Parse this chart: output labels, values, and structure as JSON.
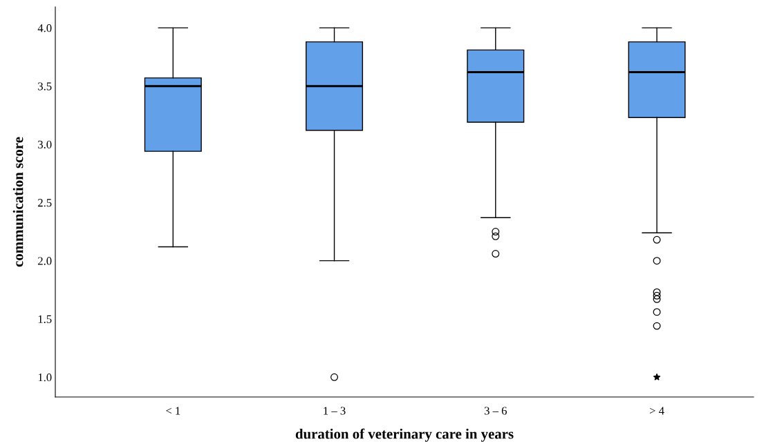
{
  "chart_data": {
    "type": "box",
    "xlabel": "duration of veterinary care in years",
    "ylabel": "communication score",
    "categories": [
      "< 1",
      "1 – 3",
      "3 – 6",
      "> 4"
    ],
    "color": "#62a0ea",
    "boxes": [
      {
        "low": 2.12,
        "q1": 2.94,
        "median": 3.5,
        "q3": 3.57,
        "high": 4.0
      },
      {
        "low": 2.0,
        "q1": 3.12,
        "median": 3.5,
        "q3": 3.88,
        "high": 4.0,
        "outliers": [
          1.0
        ]
      },
      {
        "low": 2.37,
        "q1": 3.19,
        "median": 3.62,
        "q3": 3.81,
        "high": 4.0,
        "outliers": [
          2.25,
          2.21,
          2.06
        ]
      },
      {
        "low": 2.24,
        "q1": 3.23,
        "median": 3.62,
        "q3": 3.88,
        "high": 4.0,
        "outliers": [
          2.18,
          2.0,
          1.73,
          1.7,
          1.67,
          1.56,
          1.44
        ]
      }
    ],
    "series": [
      {
        "type": "scatter",
        "x": [
          "> 4"
        ],
        "values": [
          1.0
        ],
        "marker": "star",
        "color": "#000000"
      }
    ],
    "ylim": [
      0.83,
      4.18
    ],
    "yticks": [
      {
        "value": 1.0,
        "label": "1.0"
      },
      {
        "value": 1.5,
        "label": "1.5"
      },
      {
        "value": 2.0,
        "label": "2.0"
      },
      {
        "value": 2.5,
        "label": "2.5"
      },
      {
        "value": 3.0,
        "label": "3.0"
      },
      {
        "value": 3.5,
        "label": "3.5"
      },
      {
        "value": 4.0,
        "label": "4.0"
      }
    ],
    "grid": false,
    "legend": false
  }
}
